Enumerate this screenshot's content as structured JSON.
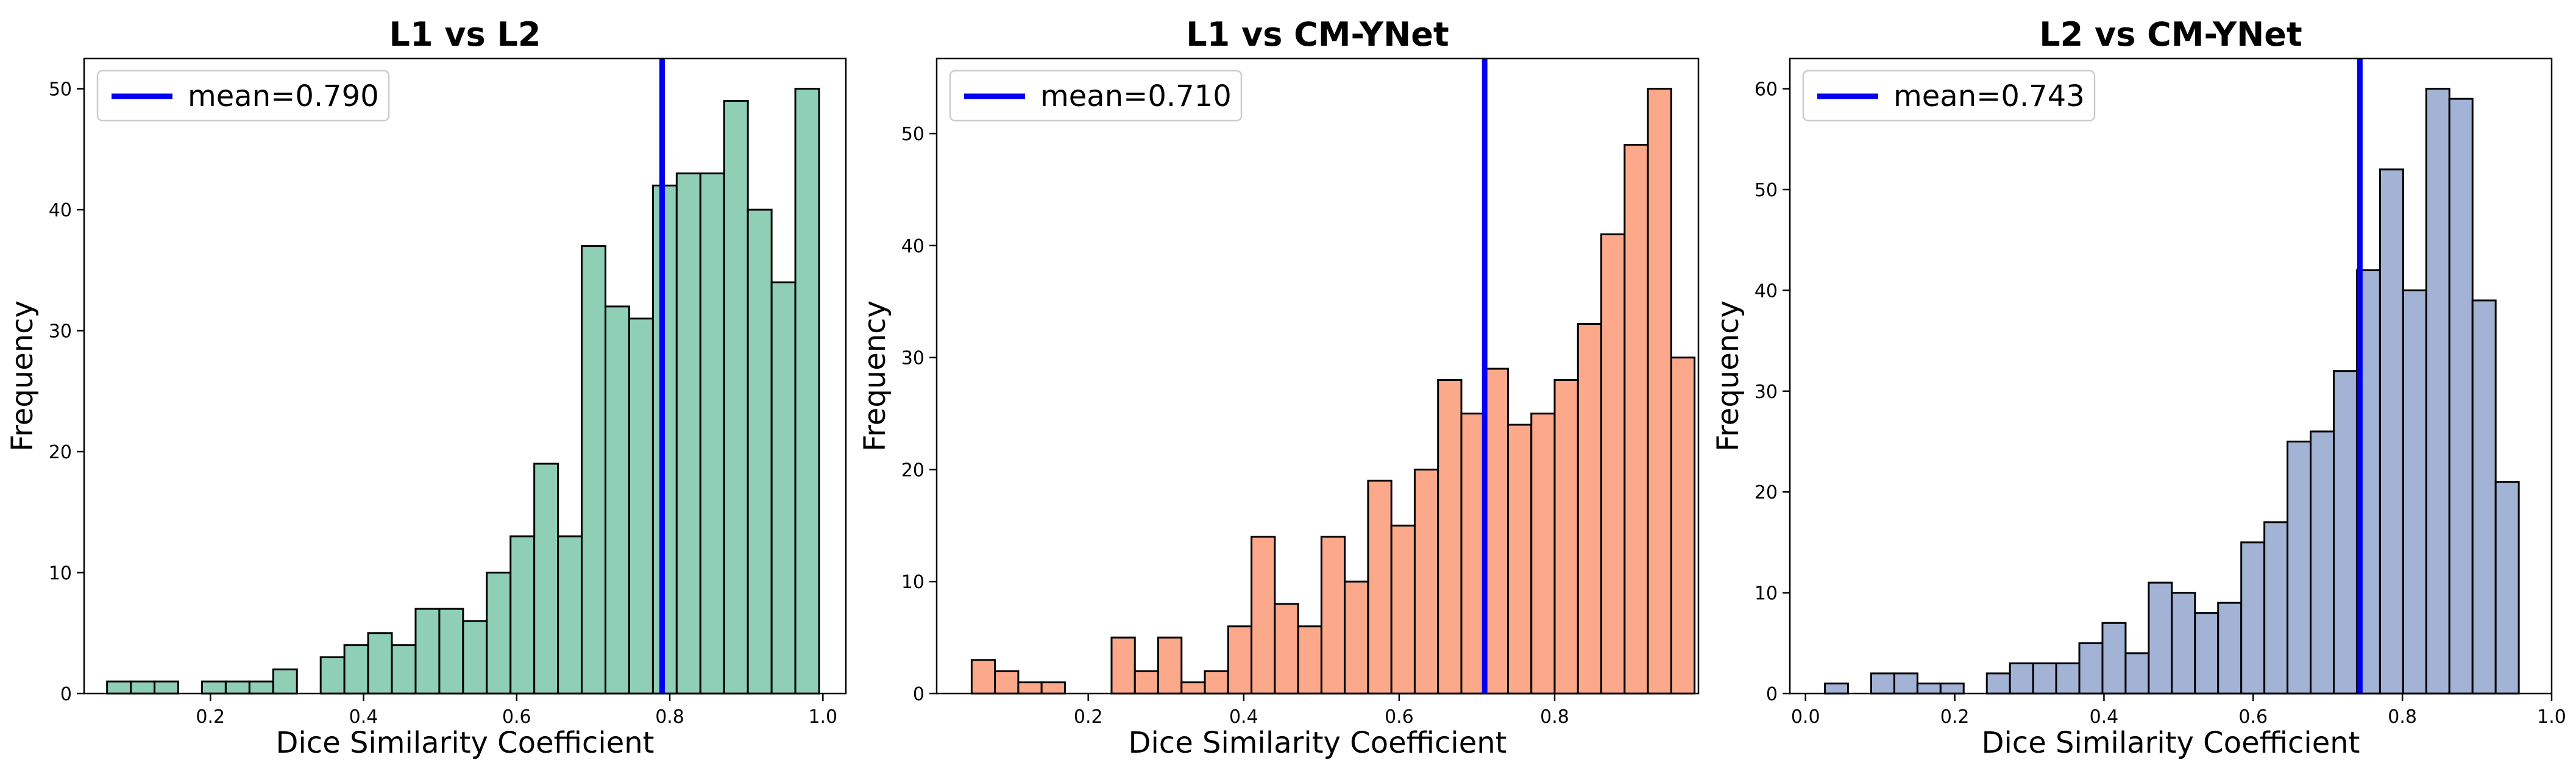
{
  "figure": {
    "colors": {
      "mean_line": "#0000ee",
      "frame": "#000000"
    }
  },
  "chart_data": [
    {
      "type": "bar",
      "title": "L1 vs L2",
      "xlabel": "Dice Similarity Coefficient",
      "ylabel": "Frequency",
      "color": "#8ecfb6",
      "bin_start": 0.065,
      "bin_width": 0.031,
      "values": [
        1,
        1,
        1,
        0,
        1,
        1,
        1,
        2,
        0,
        3,
        4,
        5,
        4,
        7,
        7,
        6,
        10,
        13,
        19,
        13,
        37,
        32,
        31,
        42,
        43,
        43,
        49,
        40,
        34,
        50
      ],
      "xlim": [
        0.035,
        1.03
      ],
      "ylim": [
        0,
        52.5
      ],
      "xticks": [
        0.2,
        0.4,
        0.6,
        0.8,
        1.0
      ],
      "xtick_labels": [
        "0.2",
        "0.4",
        "0.6",
        "0.8",
        "1.0"
      ],
      "yticks": [
        0,
        10,
        20,
        30,
        40,
        50
      ],
      "ytick_labels": [
        "0",
        "10",
        "20",
        "30",
        "40",
        "50"
      ],
      "mean": 0.79,
      "legend": "mean=0.790"
    },
    {
      "type": "bar",
      "title": "L1 vs CM-YNet",
      "xlabel": "Dice Similarity Coefficient",
      "ylabel": "Frequency",
      "color": "#fca88a",
      "bin_start": 0.05,
      "bin_width": 0.03,
      "values": [
        3,
        2,
        1,
        1,
        0,
        0,
        5,
        2,
        5,
        1,
        2,
        6,
        14,
        8,
        6,
        14,
        10,
        19,
        15,
        20,
        28,
        25,
        29,
        24,
        25,
        28,
        33,
        41,
        49,
        54,
        30
      ],
      "xlim": [
        0.005,
        0.985
      ],
      "ylim": [
        0,
        56.7
      ],
      "xticks": [
        0.2,
        0.4,
        0.6,
        0.8
      ],
      "xtick_labels": [
        "0.2",
        "0.4",
        "0.6",
        "0.8"
      ],
      "yticks": [
        0,
        10,
        20,
        30,
        40,
        50
      ],
      "ytick_labels": [
        "0",
        "10",
        "20",
        "30",
        "40",
        "50"
      ],
      "mean": 0.71,
      "legend": "mean=0.710"
    },
    {
      "type": "bar",
      "title": "L2 vs CM-YNet",
      "xlabel": "Dice Similarity Coefficient",
      "ylabel": "Frequency",
      "color": "#a3b3d5",
      "bin_start": 0.026,
      "bin_width": 0.031,
      "values": [
        1,
        0,
        2,
        2,
        1,
        1,
        0,
        2,
        3,
        3,
        3,
        5,
        7,
        4,
        11,
        10,
        8,
        9,
        15,
        17,
        25,
        26,
        32,
        42,
        52,
        40,
        60,
        59,
        39,
        21
      ],
      "xlim": [
        -0.021,
        1.0
      ],
      "ylim": [
        0,
        63
      ],
      "xticks": [
        0.0,
        0.2,
        0.4,
        0.6,
        0.8,
        1.0
      ],
      "xtick_labels": [
        "0.0",
        "0.2",
        "0.4",
        "0.6",
        "0.8",
        "1.0"
      ],
      "yticks": [
        0,
        10,
        20,
        30,
        40,
        50,
        60
      ],
      "ytick_labels": [
        "0",
        "10",
        "20",
        "30",
        "40",
        "50",
        "60"
      ],
      "mean": 0.743,
      "legend": "mean=0.743"
    }
  ]
}
